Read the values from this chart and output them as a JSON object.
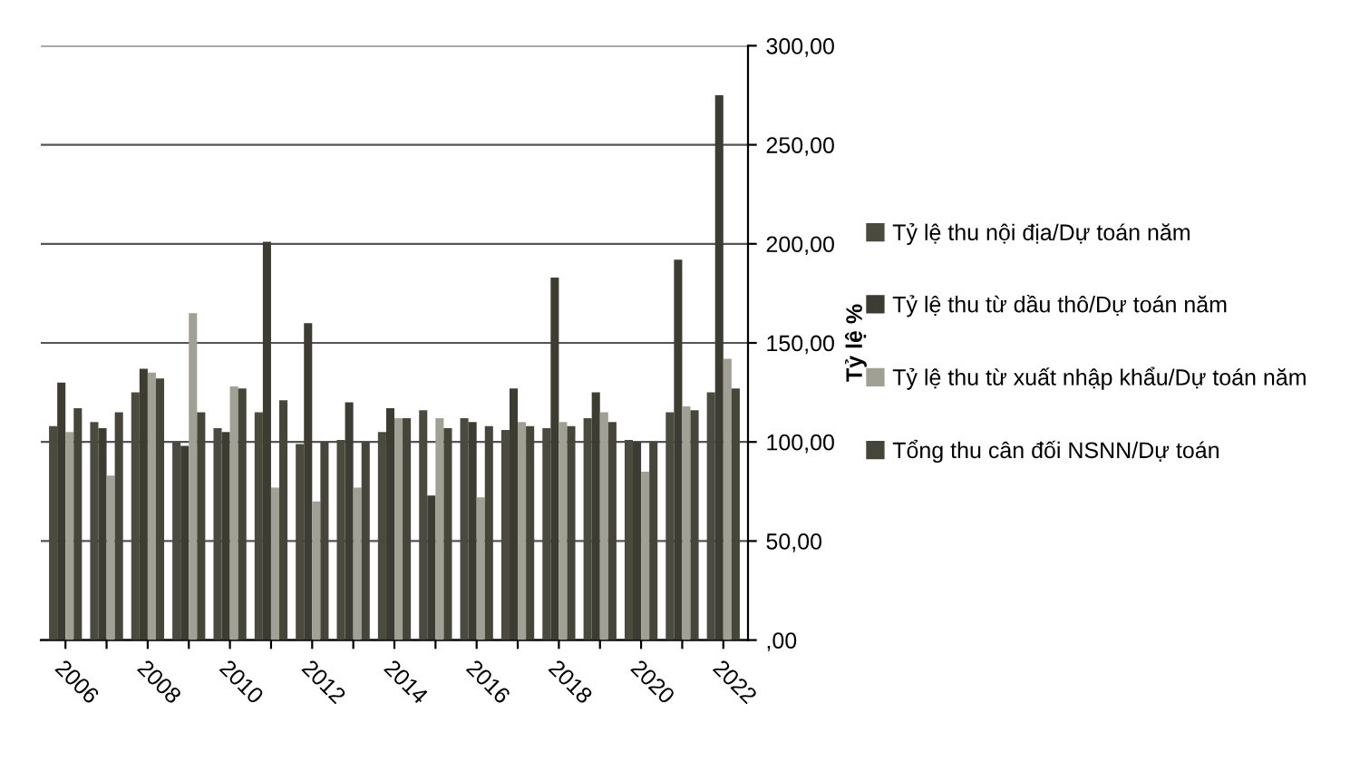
{
  "chart_data": {
    "type": "bar",
    "ylabel": "Tỷ lệ %",
    "categories": [
      "2006",
      null,
      "2008",
      null,
      "2010",
      null,
      "2012",
      null,
      "2014",
      null,
      "2016",
      null,
      "2018",
      null,
      "2020",
      null,
      "2022"
    ],
    "series": [
      {
        "name": "Tỷ lệ thu nội địa/Dự toán năm",
        "color": "#4a4a3e",
        "values": [
          108,
          110,
          125,
          100,
          107,
          115,
          99,
          101,
          105,
          116,
          112,
          106,
          107,
          112,
          101,
          115,
          125
        ]
      },
      {
        "name": "Tỷ lệ thu từ dầu thô/Dự toán năm",
        "color": "#3c3c32",
        "values": [
          130,
          107,
          137,
          98,
          105,
          201,
          160,
          120,
          117,
          73,
          110,
          127,
          183,
          125,
          100,
          192,
          275
        ]
      },
      {
        "name": "Tỷ lệ thu từ xuất nhập khẩu/Dự toán năm",
        "color": "#a0a094",
        "values": [
          105,
          83,
          135,
          165,
          128,
          77,
          70,
          77,
          112,
          112,
          72,
          110,
          110,
          115,
          85,
          118,
          142
        ]
      },
      {
        "name": "Tổng thu cân đối NSNN/Dự toán",
        "color": "#45453a",
        "values": [
          117,
          115,
          132,
          115,
          127,
          121,
          100,
          100,
          112,
          107,
          108,
          108,
          108,
          110,
          100,
          116,
          127
        ]
      }
    ],
    "ylim": [
      0,
      300
    ],
    "yticks": [
      {
        "value": 0,
        "label": ",00"
      },
      {
        "value": 50,
        "label": "50,00"
      },
      {
        "value": 100,
        "label": "100,00"
      },
      {
        "value": 150,
        "label": "150,00"
      },
      {
        "value": 200,
        "label": "200,00"
      },
      {
        "value": 250,
        "label": "250,00"
      },
      {
        "value": 300,
        "label": "300,00"
      }
    ],
    "grid": "y",
    "legend": "right"
  }
}
